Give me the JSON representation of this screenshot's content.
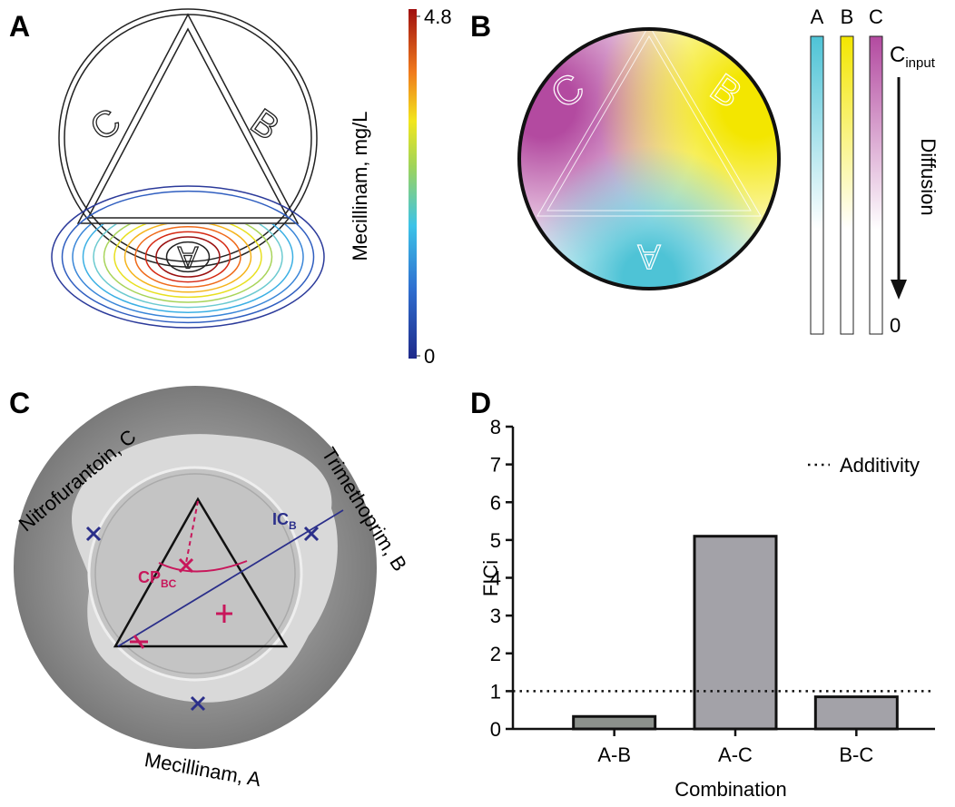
{
  "panel_a": {
    "letter": "A",
    "well_labels": [
      "A",
      "B",
      "C"
    ],
    "colorbar": {
      "label": "Mecillinam, mg/L",
      "lim": [
        0,
        4.8
      ],
      "ticks": [
        0,
        4.8
      ]
    }
  },
  "panel_b": {
    "letter": "B",
    "well_labels": [
      "A",
      "B",
      "C"
    ],
    "gradient_labels": [
      "A",
      "B",
      "C"
    ],
    "input_label": {
      "main": "C",
      "sub": "input"
    },
    "bottom_label": "0",
    "arrow_label": "Diffusion"
  },
  "panel_c": {
    "letter": "C",
    "drug_labels": [
      "Mecillinam, A",
      "Trimethoprim, B",
      "Nitrofurantoin, C"
    ],
    "ic_label": {
      "main": "IC",
      "sub": "B"
    },
    "cp_label": {
      "main": "CP",
      "sub": "BC"
    }
  },
  "chart_data": {
    "type": "bar",
    "letter": "D",
    "categories": [
      "A-B",
      "A-C",
      "B-C"
    ],
    "values": [
      0.33,
      5.1,
      0.85
    ],
    "colors": [
      "#8c918c",
      "#a3a2a8",
      "#a3a2a8"
    ],
    "ylim": [
      0,
      8
    ],
    "yticks": [
      0,
      1,
      2,
      3,
      4,
      5,
      6,
      7,
      8
    ],
    "xlabel": "Combination",
    "ylabel": "FICi",
    "reference_line": {
      "name": "Additivity",
      "value": 1
    },
    "legend": "upper right"
  }
}
